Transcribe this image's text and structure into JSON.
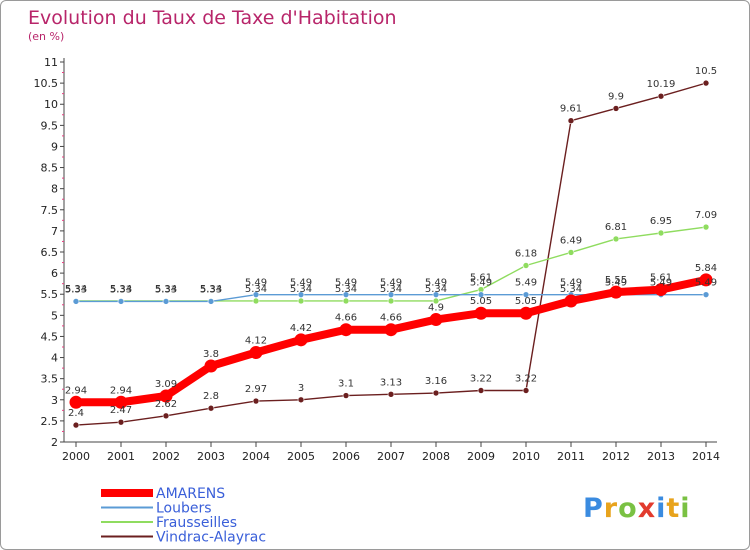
{
  "chart_data": {
    "type": "line",
    "title": "Evolution du Taux de Taxe d'Habitation",
    "subtitle": "(en %)",
    "x": [
      "2000",
      "2001",
      "2002",
      "2003",
      "2004",
      "2005",
      "2006",
      "2007",
      "2008",
      "2009",
      "2010",
      "2011",
      "2012",
      "2013",
      "2014"
    ],
    "ylim": [
      2,
      11
    ],
    "yticks": [
      2,
      2.5,
      3,
      3.5,
      4,
      4.5,
      5,
      5.5,
      6,
      6.5,
      7,
      7.5,
      8,
      8.5,
      9,
      9.5,
      10,
      10.5,
      11
    ],
    "grid": false,
    "legend_position": "bottom-left",
    "series": [
      {
        "name": "Vindrac-Alayrac",
        "color": "#6b1f1f",
        "values": [
          2.4,
          2.47,
          2.62,
          2.8,
          2.97,
          3,
          3.1,
          3.13,
          3.16,
          3.22,
          3.22,
          9.61,
          9.9,
          10.19,
          10.5
        ],
        "labels": [
          "2.4",
          "2.47",
          "2.62",
          "2.8",
          "2.97",
          "3",
          "3.1",
          "3.13",
          "3.16",
          "3.22",
          "3.22",
          "9.61",
          "9.9",
          "10.19",
          "10.5"
        ]
      },
      {
        "name": "Frausseilles",
        "color": "#8fdc5f",
        "values": [
          5.34,
          5.34,
          5.34,
          5.34,
          5.34,
          5.34,
          5.34,
          5.34,
          5.34,
          5.61,
          6.18,
          6.49,
          6.81,
          6.95,
          7.09
        ],
        "labels": [
          "5.34",
          "5.34",
          "5.34",
          "5.34",
          "5.34",
          "5.34",
          "5.34",
          "5.34",
          "5.34",
          "5.61",
          "6.18",
          "6.49",
          "6.81",
          "6.95",
          "7.09"
        ]
      },
      {
        "name": "Loubers",
        "color": "#5b9bd5",
        "values": [
          5.33,
          5.33,
          5.33,
          5.33,
          5.49,
          5.49,
          5.49,
          5.49,
          5.49,
          5.49,
          5.49,
          5.49,
          5.49,
          5.49,
          5.49
        ],
        "labels": [
          "5.33",
          "5.33",
          "5.33",
          "5.33",
          "5.49",
          "5.49",
          "5.49",
          "5.49",
          "5.49",
          "5.49",
          "5.49",
          "5.49",
          "5.49",
          "5.49",
          "5.49"
        ]
      },
      {
        "name": "AMARENS",
        "color": "#ff0000",
        "values": [
          2.94,
          2.94,
          3.09,
          3.8,
          4.12,
          4.42,
          4.66,
          4.66,
          4.9,
          5.05,
          5.05,
          5.34,
          5.55,
          5.61,
          5.84
        ],
        "labels": [
          "2.94",
          "2.94",
          "3.09",
          "3.8",
          "4.12",
          "4.42",
          "4.66",
          "4.66",
          "4.9",
          "5.05",
          "5.05",
          "5.34",
          "5.55",
          "5.61",
          "5.84"
        ]
      }
    ],
    "legend": [
      "AMARENS",
      "Loubers",
      "Frausseilles",
      "Vindrac-Alayrac"
    ],
    "watermark": "Proxiti"
  }
}
